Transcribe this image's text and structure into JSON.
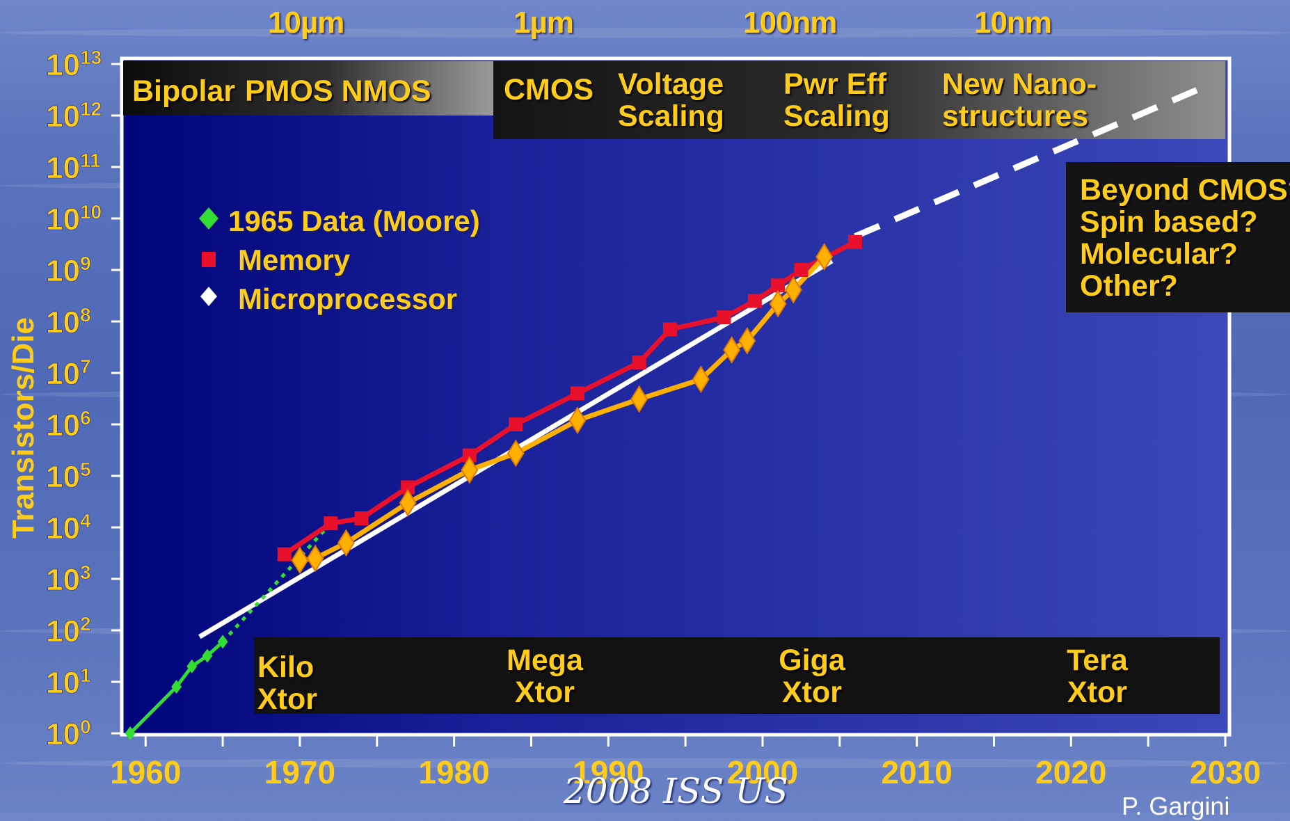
{
  "scale_labels": [
    "10µm",
    "1µm",
    "100nm",
    "10nm"
  ],
  "technology_eras": [
    "Bipolar",
    "PMOS NMOS",
    "CMOS",
    "Voltage Scaling",
    "Pwr Eff Scaling",
    "New Nano-structures"
  ],
  "xtor_labels": [
    "Kilo Xtor",
    "Mega Xtor",
    "Giga Xtor",
    "Tera Xtor"
  ],
  "future_questions": [
    "Beyond CMOS?",
    "Spin based?",
    "Molecular?",
    "Other?"
  ],
  "credit": "2008 ISS US",
  "author": "P. Gargini",
  "colors": {
    "moore": "#33dd33",
    "memory": "#e8102a",
    "microprocessor": "#ffb000",
    "trend": "#ffffff",
    "label": "#ffcc1a",
    "plot_bg_left": "#0a0f8a",
    "plot_bg_right": "#3a45b5"
  },
  "chart_data": {
    "type": "line",
    "title": "",
    "xlabel": "",
    "ylabel": "Transistors/Die",
    "y_scale": "log10",
    "xlim": [
      1958.5,
      2030
    ],
    "ylim": [
      1,
      10000000000000.0
    ],
    "x_ticks": [
      1960,
      1970,
      1980,
      1990,
      2000,
      2010,
      2020,
      2030
    ],
    "y_tick_labels": [
      "10^0",
      "10^1",
      "10^2",
      "10^3",
      "10^4",
      "10^5",
      "10^6",
      "10^7",
      "10^8",
      "10^9",
      "10^10",
      "10^11",
      "10^12",
      "10^13"
    ],
    "legend_position": "upper-left",
    "series": [
      {
        "name": "1965 Data (Moore)",
        "marker": "diamond",
        "x": [
          1959,
          1962,
          1963,
          1964,
          1965
        ],
        "y": [
          1,
          8,
          20,
          32,
          60
        ]
      },
      {
        "name": "Memory",
        "marker": "square",
        "x": [
          1969,
          1972,
          1974,
          1977,
          1981,
          1984,
          1988,
          1992,
          1994,
          1997.5,
          1999.5,
          2001,
          2002.5,
          2006
        ],
        "y": [
          3000,
          12000,
          15000,
          60000,
          250000,
          1000000,
          4000000,
          16000000,
          70000000,
          120000000,
          250000000,
          500000000,
          1000000000,
          3500000000
        ]
      },
      {
        "name": "Microprocessor",
        "marker": "diamond",
        "x": [
          1970,
          1971,
          1973,
          1977,
          1981,
          1984,
          1988,
          1992,
          1996,
          1998,
          1999,
          2001,
          2002,
          2004
        ],
        "y": [
          2300,
          2500,
          5000,
          30000,
          130000,
          275000,
          1200000,
          3100000,
          7500000,
          28000000,
          42000000,
          220000000,
          410000000,
          1800000000
        ]
      }
    ],
    "trend_line": {
      "x": [
        1963.5,
        2004.5
      ],
      "y": [
        75,
        1500000000
      ]
    },
    "projection_line": {
      "x": [
        2006,
        2029
      ],
      "y": [
        4500000000,
        4000000000000
      ]
    },
    "moore_extension": {
      "x": [
        1965,
        1972
      ],
      "y": [
        60,
        12000
      ]
    }
  }
}
